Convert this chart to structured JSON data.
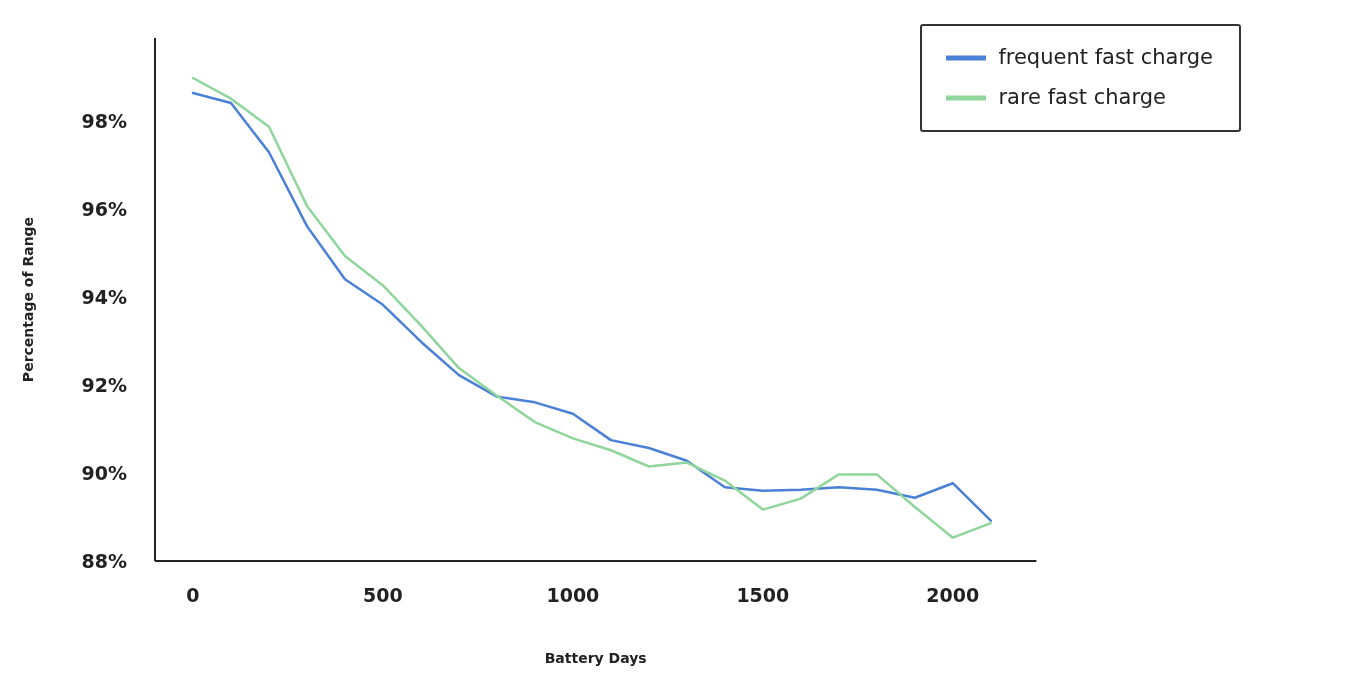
{
  "chart_data": {
    "type": "line",
    "xlabel": "Battery Days",
    "ylabel": "Percentage of Range",
    "x": [
      0,
      100,
      200,
      300,
      400,
      500,
      600,
      700,
      800,
      900,
      1000,
      1100,
      1200,
      1300,
      1400,
      1500,
      1600,
      1700,
      1800,
      1900,
      2000,
      2100
    ],
    "series": [
      {
        "name": "frequent fast charge",
        "color": "#4a80d6",
        "values": [
          98.65,
          98.42,
          97.3,
          95.62,
          94.41,
          93.83,
          92.99,
          92.23,
          91.74,
          91.61,
          91.35,
          90.75,
          90.57,
          90.28,
          89.68,
          89.6,
          89.62,
          89.68,
          89.62,
          89.44,
          89.77,
          88.92
        ]
      },
      {
        "name": "rare fast charge",
        "color": "#90d69c",
        "values": [
          98.99,
          98.52,
          97.88,
          96.08,
          94.94,
          94.27,
          93.36,
          92.39,
          91.76,
          91.16,
          90.79,
          90.52,
          90.15,
          90.24,
          89.83,
          89.17,
          89.42,
          89.97,
          89.97,
          89.23,
          88.53,
          88.86
        ]
      }
    ],
    "xlim": [
      -100,
      2220
    ],
    "xticks": [
      0,
      500,
      1000,
      1500,
      2000
    ],
    "ylim": [
      88,
      99.9
    ],
    "yticks": [
      {
        "value": 88,
        "label": "88%"
      },
      {
        "value": 90,
        "label": "90%"
      },
      {
        "value": 92,
        "label": "92%"
      },
      {
        "value": 94,
        "label": "94%"
      },
      {
        "value": 96,
        "label": "96%"
      },
      {
        "value": 98,
        "label": "98%"
      }
    ],
    "grid": false,
    "legend": "top right",
    "marker": "none",
    "line_style": "solid"
  }
}
